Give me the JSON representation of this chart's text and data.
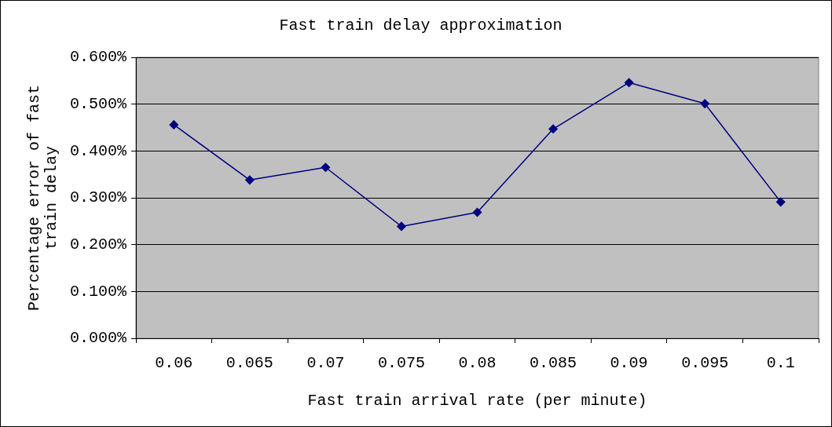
{
  "chart_data": {
    "type": "line",
    "title": "Fast train delay approximation",
    "xlabel": "Fast train arrival rate (per minute)",
    "ylabel": "Percentage error of fast train delay",
    "categories": [
      "0.06",
      "0.065",
      "0.07",
      "0.075",
      "0.08",
      "0.085",
      "0.09",
      "0.095",
      "0.1"
    ],
    "series": [
      {
        "color": "#000080",
        "values": [
          0.456,
          0.338,
          0.365,
          0.239,
          0.269,
          0.447,
          0.546,
          0.501,
          0.291
        ]
      }
    ],
    "ylim": [
      0,
      0.6
    ],
    "yticks": [
      {
        "value": 0,
        "label": "0.000%"
      },
      {
        "value": 0.1,
        "label": "0.100%"
      },
      {
        "value": 0.2,
        "label": "0.200%"
      },
      {
        "value": 0.3,
        "label": "0.300%"
      },
      {
        "value": 0.4,
        "label": "0.400%"
      },
      {
        "value": 0.5,
        "label": "0.500%"
      },
      {
        "value": 0.6,
        "label": "0.600%"
      }
    ],
    "grid": "y",
    "legend": false,
    "marker": "diamond",
    "line_style": "solid"
  }
}
